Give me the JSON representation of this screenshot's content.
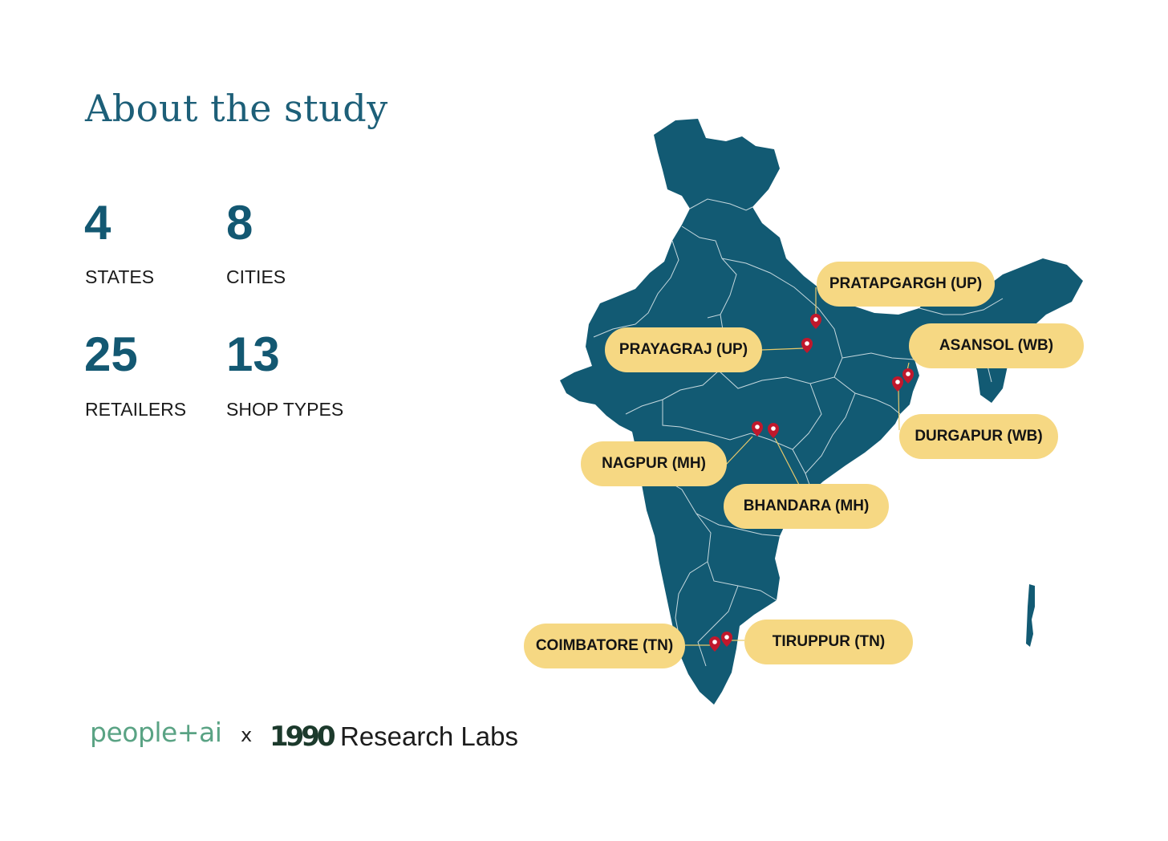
{
  "title": "About the study",
  "stats": [
    {
      "value": "4",
      "label": "STATES"
    },
    {
      "value": "8",
      "label": "CITIES"
    },
    {
      "value": "25",
      "label": "RETAILERS"
    },
    {
      "value": "13",
      "label": "SHOP TYPES"
    }
  ],
  "map": {
    "land_color": "#125a73",
    "border_color": "#d9e6ea",
    "pin_color": "#c0182c",
    "pill_color": "#f6d883",
    "cities": [
      "PRATAPGARGH (UP)",
      "PRAYAGRAJ (UP)",
      "ASANSOL (WB)",
      "DURGAPUR (WB)",
      "NAGPUR (MH)",
      "BHANDARA (MH)",
      "COIMBATORE (TN)",
      "TIRUPPUR (TN)"
    ]
  },
  "footer": {
    "partner1": "people+ai",
    "separator": "x",
    "partner2_logo": "1990",
    "partner2_text": "Research Labs"
  }
}
